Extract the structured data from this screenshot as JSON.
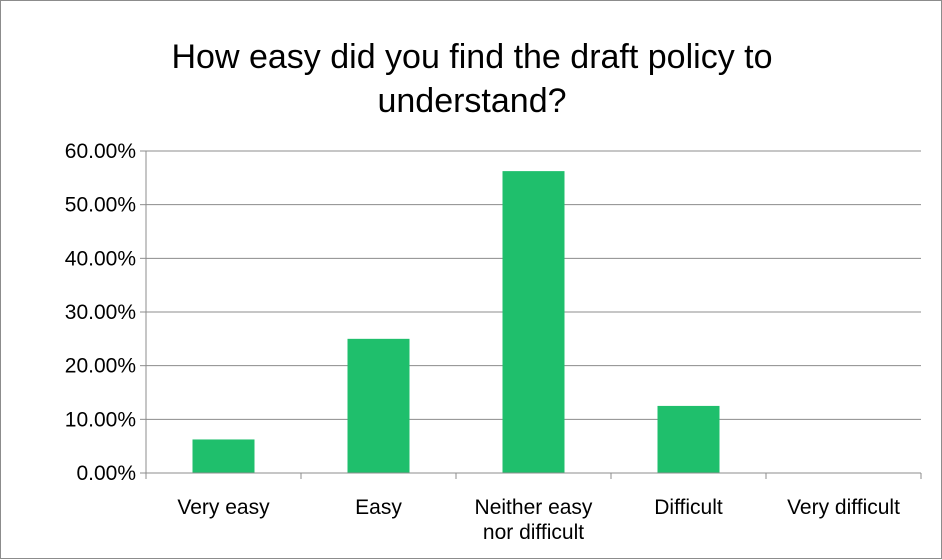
{
  "chart_data": {
    "type": "bar",
    "title_lines": [
      "How easy did you find the draft policy to",
      "understand?"
    ],
    "categories": [
      [
        "Very easy"
      ],
      [
        "Easy"
      ],
      [
        "Neither easy",
        "nor difficult"
      ],
      [
        "Difficult"
      ],
      [
        "Very difficult"
      ]
    ],
    "values": [
      6.25,
      25.0,
      56.25,
      12.5,
      0.0
    ],
    "ylim": [
      0,
      60
    ],
    "ytick_step": 10,
    "ytick_labels": [
      "0.00%",
      "10.00%",
      "20.00%",
      "30.00%",
      "40.00%",
      "50.00%",
      "60.00%"
    ],
    "grid": true,
    "legend": "none",
    "bar_color": "#1fbf6c"
  }
}
